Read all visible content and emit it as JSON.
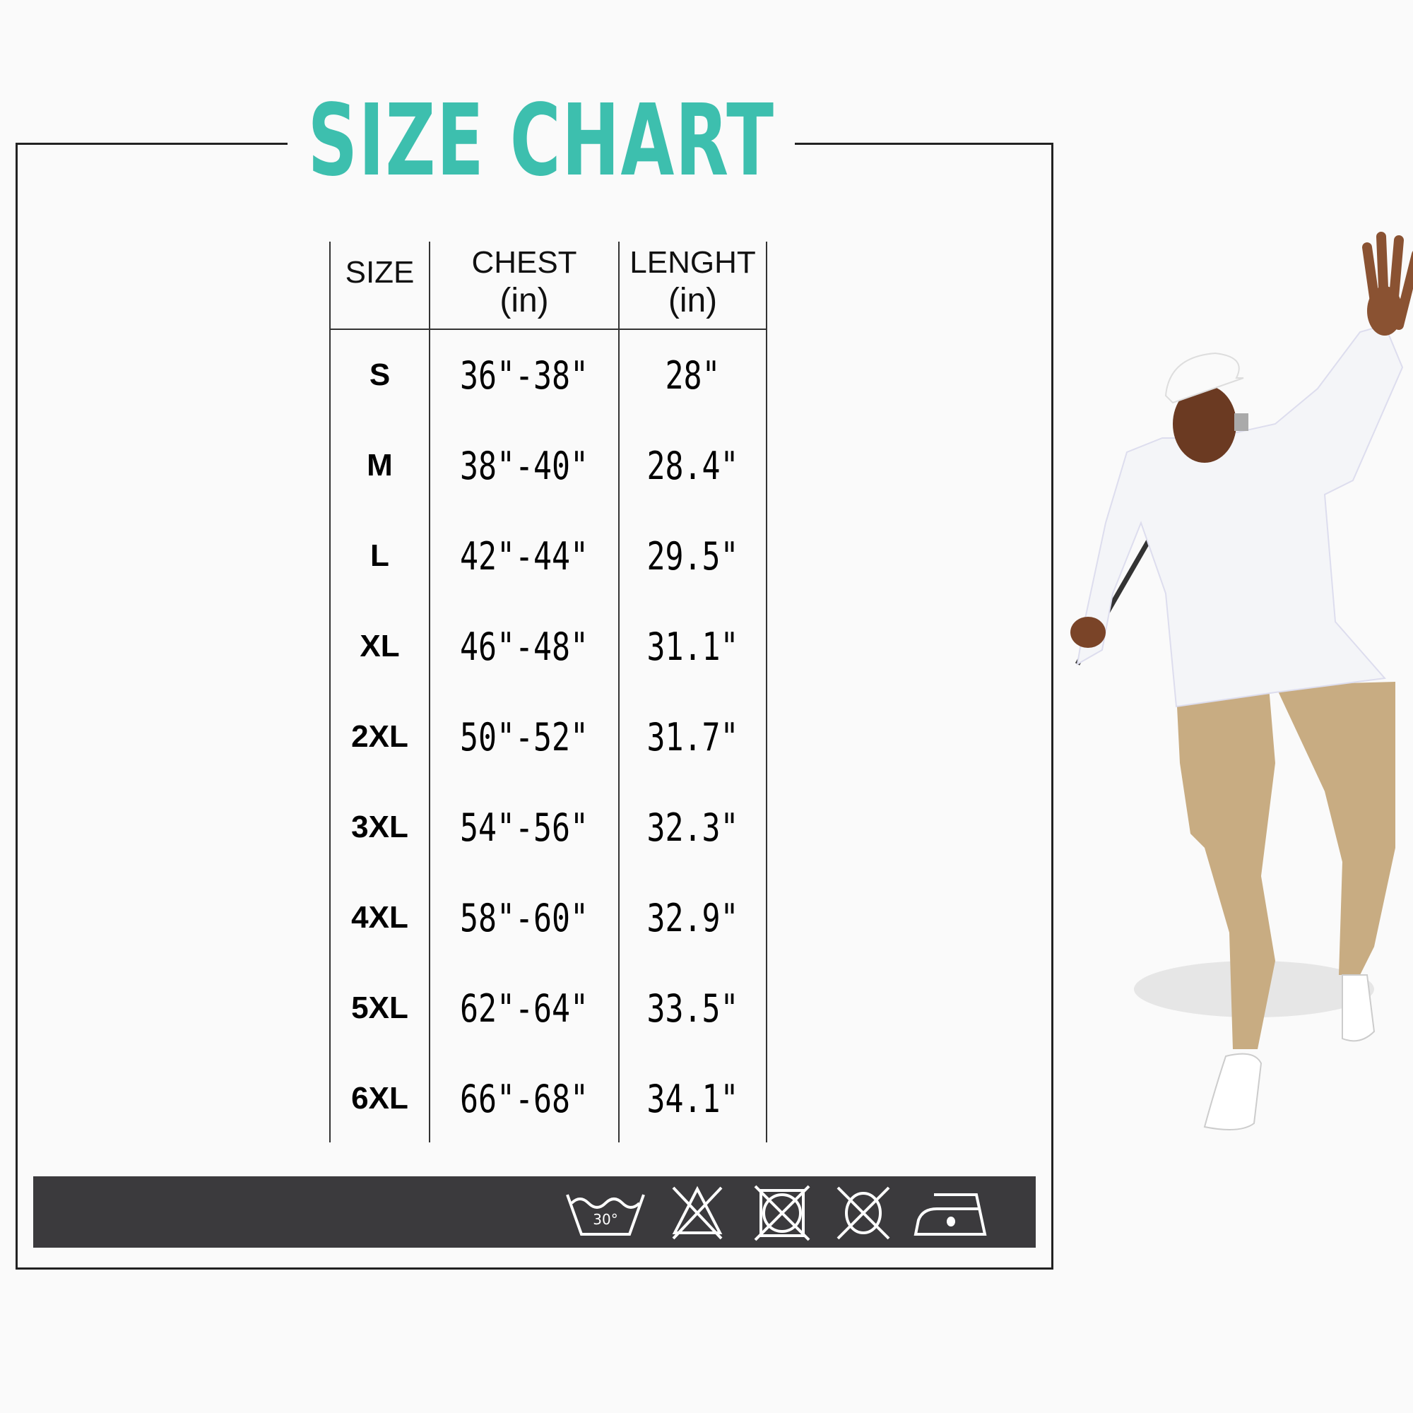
{
  "title": "SIZE CHART",
  "headers": {
    "size": "SIZE",
    "chest": "CHEST",
    "chest_unit": "(in)",
    "length": "LENGHT",
    "length_unit": "(in)"
  },
  "rows": [
    {
      "size": "S",
      "chest": "36\"-38\"",
      "length": "28\""
    },
    {
      "size": "M",
      "chest": "38\"-40\"",
      "length": "28.4\""
    },
    {
      "size": "L",
      "chest": "42\"-44\"",
      "length": "29.5\""
    },
    {
      "size": "XL",
      "chest": "46\"-48\"",
      "length": "31.1\""
    },
    {
      "size": "2XL",
      "chest": "50\"-52\"",
      "length": "31.7\""
    },
    {
      "size": "3XL",
      "chest": "54\"-56\"",
      "length": "32.3\""
    },
    {
      "size": "4XL",
      "chest": "58\"-60\"",
      "length": "32.9\""
    },
    {
      "size": "5XL",
      "chest": "62\"-64\"",
      "length": "33.5\""
    },
    {
      "size": "6XL",
      "chest": "66\"-68\"",
      "length": "34.1\""
    }
  ],
  "care_icons": {
    "wash_temp": "30°",
    "icons": [
      "wash-30-icon",
      "do-not-bleach-icon",
      "do-not-tumble-dry-icon",
      "do-not-dry-clean-icon",
      "iron-low-icon"
    ]
  },
  "colors": {
    "title": "#3dbfae",
    "bar": "#3b3a3d",
    "pants": "#c8ac82"
  }
}
